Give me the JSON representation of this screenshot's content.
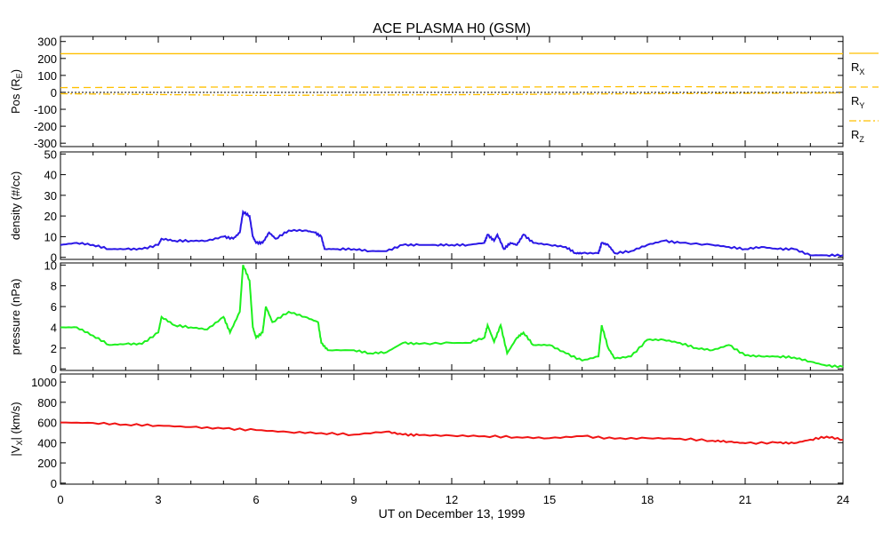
{
  "chart_data": [
    {
      "type": "line",
      "title": "ACE PLASMA H0 (GSM)",
      "ylabel": "Pos (R_E)",
      "ylabel_parts": {
        "main": "Pos (R",
        "sub": "E",
        "end": ")"
      },
      "ylim": [
        -320,
        320
      ],
      "yticks": [
        300,
        200,
        100,
        0,
        -100,
        -200,
        -300
      ],
      "series": [
        {
          "name": "RX",
          "label": "R",
          "sub": "X",
          "style": "solid",
          "color": "#ffc000",
          "x": [
            0,
            24
          ],
          "values": [
            228,
            228
          ]
        },
        {
          "name": "RY",
          "label": "R",
          "sub": "Y",
          "style": "dashed",
          "color": "#ffc000",
          "x": [
            0,
            6,
            12,
            18,
            24
          ],
          "values": [
            28,
            32,
            30,
            34,
            30
          ]
        },
        {
          "name": "RZ",
          "label": "R",
          "sub": "Z",
          "style": "dashdot",
          "color": "#ffc000",
          "x": [
            0,
            6,
            12,
            18,
            24
          ],
          "values": [
            -8,
            -18,
            -14,
            -8,
            -4
          ]
        }
      ],
      "zero_line": true
    },
    {
      "type": "line",
      "ylabel": "density (#/cc)",
      "ylim": [
        0,
        50
      ],
      "yticks": [
        0,
        10,
        20,
        30,
        40,
        50
      ],
      "series": [
        {
          "name": "density",
          "color": "#2b18e6",
          "x": [
            0,
            0.5,
            1,
            1.5,
            2,
            2.5,
            3,
            3.1,
            3.5,
            4,
            4.5,
            5,
            5.3,
            5.5,
            5.6,
            5.8,
            5.9,
            6,
            6.2,
            6.4,
            6.6,
            7,
            7.5,
            7.8,
            8,
            8.1,
            8.5,
            9,
            9.5,
            10,
            10.5,
            11,
            11.5,
            12,
            12.5,
            13,
            13.1,
            13.3,
            13.4,
            13.6,
            13.8,
            14,
            14.2,
            14.5,
            15,
            15.5,
            15.8,
            16,
            16.5,
            16.6,
            16.8,
            17,
            17.5,
            18,
            18.5,
            19,
            20,
            20.5,
            21,
            21.5,
            22,
            22.5,
            23,
            23.5,
            24
          ],
          "values": [
            6,
            7,
            6,
            4,
            4,
            4,
            6,
            9,
            8,
            8,
            8,
            10,
            9,
            12,
            22,
            20,
            10,
            7,
            7,
            12,
            9,
            13,
            13,
            12,
            10,
            4,
            4,
            4,
            3,
            3,
            6,
            6,
            6,
            6,
            6,
            7,
            11,
            8,
            11,
            4,
            7,
            6,
            11,
            7,
            6,
            5,
            2,
            2,
            2,
            7,
            6,
            2,
            3,
            6,
            8,
            7,
            6,
            5,
            4,
            5,
            4,
            4,
            1,
            1,
            1
          ]
        }
      ]
    },
    {
      "type": "line",
      "ylabel": "pressure (nPa)",
      "ylim": [
        0,
        10
      ],
      "yticks": [
        0,
        2,
        4,
        6,
        8,
        10
      ],
      "series": [
        {
          "name": "pressure",
          "color": "#1ef01e",
          "x": [
            0,
            0.5,
            1,
            1.5,
            2,
            2.5,
            3,
            3.1,
            3.5,
            4,
            4.5,
            5,
            5.2,
            5.5,
            5.6,
            5.8,
            5.9,
            6,
            6.2,
            6.3,
            6.5,
            7,
            7.5,
            7.9,
            8,
            8.2,
            9,
            9.5,
            10,
            10.5,
            11,
            12,
            12.5,
            13,
            13.1,
            13.3,
            13.5,
            13.7,
            14,
            14.2,
            14.5,
            15,
            15.5,
            16,
            16.5,
            16.6,
            16.8,
            17,
            17.5,
            18,
            18.5,
            19,
            19.5,
            20,
            20.5,
            21,
            21.5,
            22,
            22.5,
            23,
            23.5,
            24
          ],
          "values": [
            4,
            4,
            3.2,
            2.3,
            2.4,
            2.4,
            3.5,
            5,
            4.2,
            4,
            3.8,
            5,
            3.5,
            5.5,
            10,
            8.5,
            4,
            3,
            3.5,
            6,
            4.5,
            5.5,
            5,
            4.5,
            2.5,
            1.8,
            1.8,
            1.5,
            1.6,
            2.5,
            2.4,
            2.5,
            2.5,
            3,
            4.2,
            2.6,
            4.2,
            1.5,
            3,
            3.5,
            2.3,
            2.3,
            1.5,
            0.8,
            1.2,
            4.2,
            2,
            1,
            1.2,
            2.8,
            2.8,
            2.5,
            2,
            1.8,
            2.3,
            1.3,
            1.2,
            1.2,
            1.1,
            0.7,
            0.3,
            0.2
          ]
        }
      ]
    },
    {
      "type": "line",
      "ylabel": "|V_X| (km/s)",
      "ylabel_parts": {
        "main": "|V",
        "sub": "X",
        "end": "| (km/s)"
      },
      "ylim": [
        0,
        1000
      ],
      "yticks": [
        0,
        200,
        400,
        600,
        800,
        1000
      ],
      "series": [
        {
          "name": "Vx",
          "color": "#f01414",
          "x": [
            0,
            1,
            2,
            3,
            4,
            5,
            6,
            7,
            8,
            9,
            10,
            10.5,
            11,
            12,
            13,
            14,
            15,
            16,
            17,
            18,
            19,
            20,
            20.5,
            21,
            22,
            22.5,
            23,
            23.5,
            24
          ],
          "values": [
            600,
            595,
            580,
            570,
            555,
            540,
            525,
            505,
            495,
            480,
            510,
            480,
            475,
            470,
            465,
            455,
            445,
            465,
            440,
            445,
            440,
            420,
            410,
            395,
            400,
            395,
            430,
            460,
            430
          ]
        }
      ]
    }
  ],
  "x_axis": {
    "xlim": [
      0,
      24
    ],
    "ticks": [
      0,
      3,
      6,
      9,
      12,
      15,
      18,
      21,
      24
    ],
    "tick_labels": [
      "0",
      "3",
      "6",
      "9",
      "12",
      "15",
      "18",
      "21",
      "24"
    ],
    "label": "UT on December 13, 1999"
  }
}
